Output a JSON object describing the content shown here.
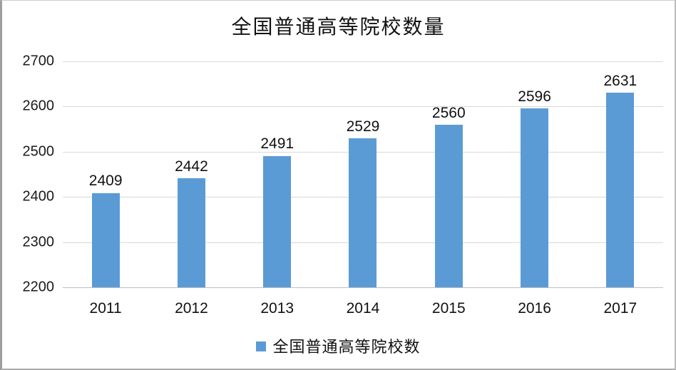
{
  "chart_data": {
    "type": "bar",
    "title": "全国普通高等院校数量",
    "categories": [
      "2011",
      "2012",
      "2013",
      "2014",
      "2015",
      "2016",
      "2017"
    ],
    "series": [
      {
        "name": "全国普通高等院校数",
        "color": "#5B9BD5",
        "values": [
          2409,
          2442,
          2491,
          2529,
          2560,
          2596,
          2631
        ]
      }
    ],
    "data_labels": [
      2409,
      2442,
      2491,
      2529,
      2560,
      2596,
      2631
    ],
    "ylim": [
      2200,
      2700
    ],
    "ytick_interval": 100,
    "yticks": [
      2200,
      2300,
      2400,
      2500,
      2600,
      2700
    ],
    "grid": true,
    "legend_position": "bottom",
    "xlabel": "",
    "ylabel": ""
  },
  "colors": {
    "bar": "#5B9BD5",
    "gridline": "#d9d9d9",
    "baseline": "#bfbfbf",
    "text": "#1a1a1a"
  }
}
